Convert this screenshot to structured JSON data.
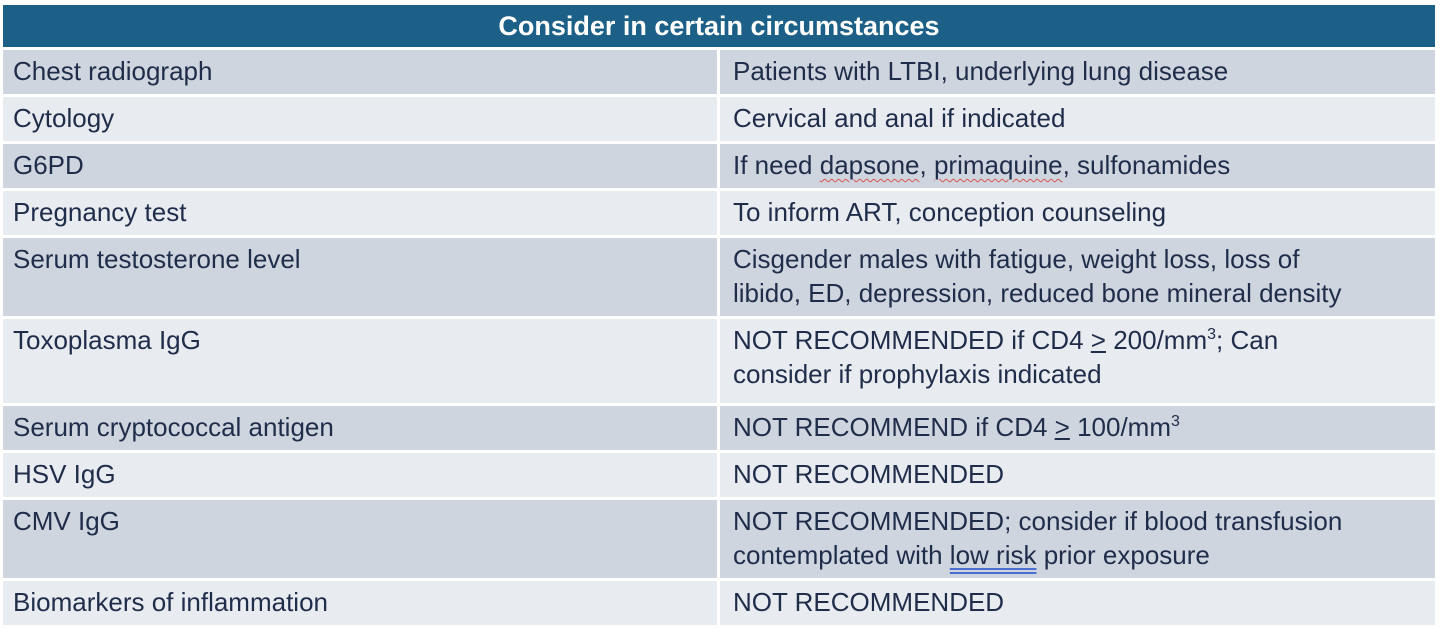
{
  "header": {
    "title": "Consider in certain circumstances"
  },
  "rows": [
    {
      "test": "Chest radiograph",
      "note": "Patients with LTBI, underlying lung disease"
    },
    {
      "test": "Cytology",
      "note": "Cervical and anal if indicated"
    },
    {
      "test": "G6PD",
      "note_a": "If need ",
      "note_b": "dapsone",
      "note_c": ", ",
      "note_d": "primaquine",
      "note_e": ", sulfonamides"
    },
    {
      "test": "Pregnancy test",
      "note": "To inform ART, conception counseling"
    },
    {
      "test": "Serum testosterone level",
      "note_line1": "Cisgender males with fatigue, weight loss, loss of",
      "note_line2": "libido, ED, depression, reduced bone mineral density"
    },
    {
      "test": "Toxoplasma IgG",
      "note_a": "NOT RECOMMENDED if CD4 ",
      "note_b": ">",
      "note_c": " 200/mm",
      "note_sup": "3",
      "note_d": "; Can",
      "note_line2": "consider if prophylaxis indicated"
    },
    {
      "test": "Serum cryptococcal antigen",
      "note_a": "NOT RECOMMEND if CD4 ",
      "note_b": ">",
      "note_c": " 100/mm",
      "note_sup": "3"
    },
    {
      "test": "HSV IgG",
      "note": "NOT RECOMMENDED"
    },
    {
      "test": "CMV IgG",
      "note_line1": "NOT RECOMMENDED; consider if blood transfusion",
      "note_a": "contemplated with ",
      "note_b": "low risk",
      "note_c": " prior exposure"
    },
    {
      "test": "Biomarkers of inflammation",
      "note": "NOT RECOMMENDED"
    }
  ]
}
